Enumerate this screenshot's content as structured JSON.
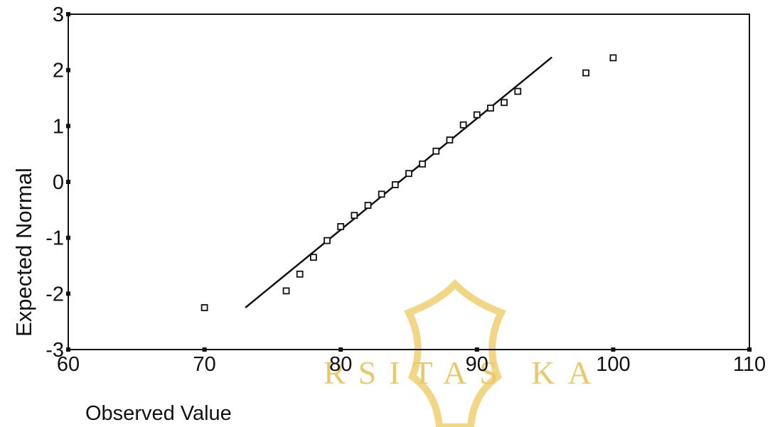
{
  "chart_data": {
    "type": "scatter",
    "title": "",
    "xlabel": "Observed Value",
    "ylabel": "Expected Normal",
    "xlim": [
      60,
      110
    ],
    "ylim": [
      -3,
      3
    ],
    "xticks": [
      "60",
      "70",
      "80",
      "90",
      "100",
      "110"
    ],
    "yticks": [
      "3",
      "2",
      "1",
      "0",
      "-1",
      "-2",
      "-3"
    ],
    "grid": false,
    "points": [
      {
        "x": 70,
        "y": -2.25
      },
      {
        "x": 76,
        "y": -1.95
      },
      {
        "x": 77,
        "y": -1.65
      },
      {
        "x": 78,
        "y": -1.35
      },
      {
        "x": 79,
        "y": -1.05
      },
      {
        "x": 80,
        "y": -0.8
      },
      {
        "x": 81,
        "y": -0.6
      },
      {
        "x": 82,
        "y": -0.42
      },
      {
        "x": 83,
        "y": -0.22
      },
      {
        "x": 84,
        "y": -0.05
      },
      {
        "x": 85,
        "y": 0.15
      },
      {
        "x": 86,
        "y": 0.32
      },
      {
        "x": 87,
        "y": 0.55
      },
      {
        "x": 88,
        "y": 0.75
      },
      {
        "x": 89,
        "y": 1.02
      },
      {
        "x": 90,
        "y": 1.2
      },
      {
        "x": 91,
        "y": 1.32
      },
      {
        "x": 92,
        "y": 1.42
      },
      {
        "x": 93,
        "y": 1.62
      },
      {
        "x": 98,
        "y": 1.95
      },
      {
        "x": 100,
        "y": 2.22
      }
    ],
    "reference_line": {
      "x1": 73,
      "y1": -2.25,
      "x2": 95.5,
      "y2": 2.23
    },
    "marker": "square",
    "colors": {
      "marker": "#111111",
      "line": "#111111",
      "axis": "#111111"
    }
  },
  "watermark": {
    "text": "RSITAS  KA",
    "color": "#e8c25a"
  }
}
